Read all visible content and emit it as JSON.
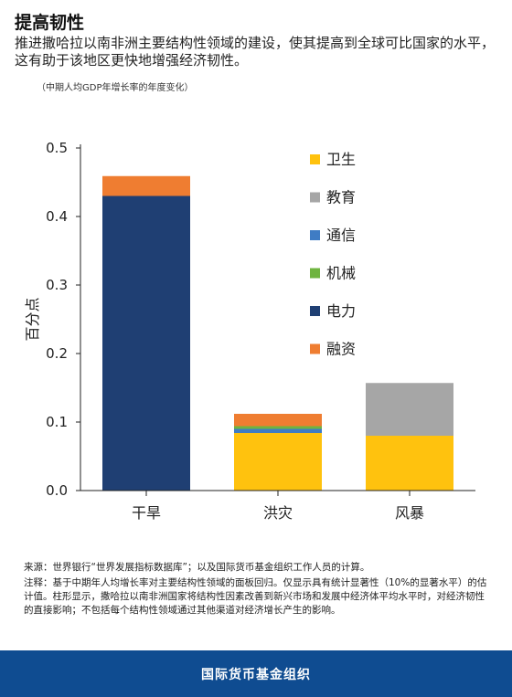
{
  "header": {
    "title": "提高韧性",
    "subtitle": "推进撒哈拉以南非洲主要结构性领域的建设，使其提高到全球可比国家的水平，这有助于该地区更快地增强经济韧性。",
    "note": "（中期人均GDP年增长率的年度变化）"
  },
  "chart_data": {
    "type": "bar",
    "stacked": true,
    "categories": [
      "干旱",
      "洪灾",
      "风暴"
    ],
    "ylabel": "百分点",
    "xlabel": "",
    "ylim": [
      0,
      0.5
    ],
    "yticks": [
      "0.0",
      "0.1",
      "0.2",
      "0.3",
      "0.4",
      "0.5"
    ],
    "series": [
      {
        "name": "卫生",
        "color": "#ffc20e",
        "values": [
          0,
          0.084,
          0.08
        ]
      },
      {
        "name": "教育",
        "color": "#a6a6a6",
        "values": [
          0,
          0,
          0.077
        ]
      },
      {
        "name": "通信",
        "color": "#3f7cc4",
        "values": [
          0,
          0.006,
          0
        ]
      },
      {
        "name": "机械",
        "color": "#6fb43f",
        "values": [
          0,
          0.004,
          0
        ]
      },
      {
        "name": "电力",
        "color": "#1f3f73",
        "values": [
          0.43,
          0,
          0
        ]
      },
      {
        "name": "融资",
        "color": "#ef7d31",
        "values": [
          0.029,
          0.018,
          0
        ]
      }
    ],
    "stack_order": [
      "卫生",
      "教育",
      "通信",
      "机械",
      "电力",
      "融资"
    ],
    "legend": "right",
    "grid": false
  },
  "footer": {
    "source": "来源：世界银行“世界发展指标数据库”；以及国际货币基金组织工作人员的计算。",
    "notes": "注释：基于中期年人均增长率对主要结构性领域的面板回归。仅显示具有统计显著性（10%的显著水平）的估计值。柱形显示，撒哈拉以南非洲国家将结构性因素改善到新兴市场和发展中经济体平均水平时，对经济韧性的直接影响；不包括每个结构性领域通过其他渠道对经济增长产生的影响。",
    "org": "国际货币基金组织"
  }
}
